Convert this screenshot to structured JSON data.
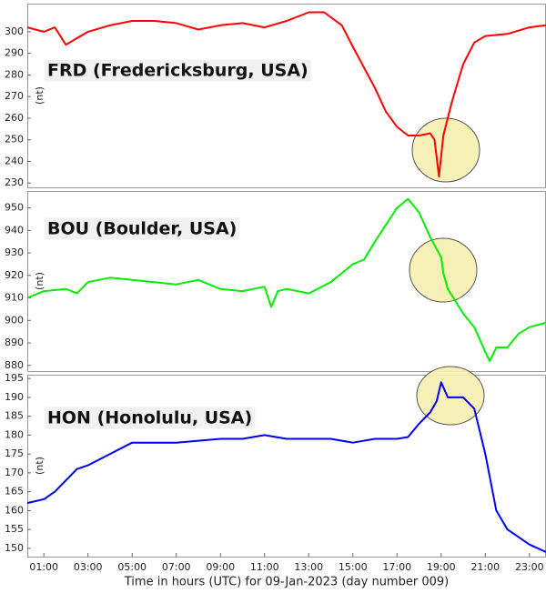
{
  "chart_data": [
    {
      "type": "line",
      "title": "FRD (Fredericksburg, USA)",
      "ylabel": "(nt)",
      "xlim": [
        0.25,
        23.75
      ],
      "ylim": [
        228,
        313
      ],
      "yticks": [
        230,
        240,
        250,
        260,
        270,
        280,
        290,
        300
      ],
      "x": [
        0.25,
        1,
        1.5,
        2,
        2.5,
        3,
        4,
        5,
        6,
        7,
        8,
        9,
        10,
        11,
        12,
        13,
        13.7,
        14.5,
        15,
        16,
        16.5,
        17,
        17.5,
        18,
        18.5,
        18.7,
        18.9,
        19.1,
        19.5,
        20,
        20.5,
        21,
        22,
        23,
        23.75
      ],
      "series": [
        {
          "name": "FRD",
          "color": "#ff0000",
          "values": [
            302,
            300,
            302,
            294,
            297,
            300,
            303,
            305,
            305,
            304,
            301,
            303,
            304,
            302,
            305,
            309,
            309,
            303,
            293,
            274,
            263,
            256,
            252,
            252,
            253,
            250,
            233,
            252,
            268,
            285,
            295,
            298,
            299,
            302,
            303
          ]
        }
      ]
    },
    {
      "type": "line",
      "title": "BOU (Boulder, USA)",
      "ylabel": "(nt)",
      "xlim": [
        0.25,
        23.75
      ],
      "ylim": [
        877.5,
        957.5
      ],
      "yticks": [
        880,
        890,
        900,
        910,
        920,
        930,
        940,
        950
      ],
      "x": [
        0.25,
        1,
        2,
        2.5,
        3,
        4,
        5,
        6,
        7,
        8,
        9,
        10,
        11,
        11.3,
        11.6,
        12,
        13,
        14,
        15,
        15.5,
        16,
        17,
        17.5,
        18,
        18.5,
        19,
        19.1,
        19.3,
        20,
        20.5,
        21,
        21.2,
        21.5,
        22,
        22.5,
        23,
        23.75
      ],
      "series": [
        {
          "name": "BOU",
          "color": "#00ee00",
          "values": [
            910,
            913,
            914,
            912,
            917,
            919,
            918,
            917,
            916,
            918,
            914,
            913,
            915,
            906,
            913,
            914,
            912,
            917,
            925,
            927,
            935,
            950,
            954,
            948,
            937,
            928,
            921,
            914,
            903,
            897,
            886,
            882,
            888,
            888,
            894,
            897,
            899
          ]
        }
      ]
    },
    {
      "type": "line",
      "title": "HON (Honolulu, USA)",
      "ylabel": "(nt)",
      "xlabel": "Time in hours (UTC) for 09-Jan-2023 (day number 009)",
      "xlim": [
        0.25,
        23.75
      ],
      "ylim": [
        147.8,
        196
      ],
      "yticks": [
        150,
        155,
        160,
        165,
        170,
        175,
        180,
        185,
        190,
        195
      ],
      "xticks": [
        {
          "value": 1,
          "label": "01:00"
        },
        {
          "value": 3,
          "label": "03:00"
        },
        {
          "value": 5,
          "label": "05:00"
        },
        {
          "value": 7,
          "label": "07:00"
        },
        {
          "value": 9,
          "label": "09:00"
        },
        {
          "value": 11,
          "label": "11:00"
        },
        {
          "value": 13,
          "label": "13:00"
        },
        {
          "value": 15,
          "label": "15:00"
        },
        {
          "value": 17,
          "label": "17:00"
        },
        {
          "value": 19,
          "label": "19:00"
        },
        {
          "value": 21,
          "label": "21:00"
        },
        {
          "value": 23,
          "label": "23:00"
        }
      ],
      "x": [
        0.25,
        1,
        1.5,
        2,
        2.5,
        3,
        4,
        5,
        6,
        7,
        8,
        9,
        10,
        11,
        12,
        13,
        14,
        15,
        16,
        17,
        17.5,
        18,
        18.5,
        18.8,
        19,
        19.3,
        20,
        20.5,
        21,
        21.5,
        22,
        23,
        23.75
      ],
      "series": [
        {
          "name": "HON",
          "color": "#0000ee",
          "values": [
            162,
            163,
            165,
            168,
            171,
            172,
            175,
            178,
            178,
            178,
            178.5,
            179,
            179,
            180,
            179,
            179,
            179,
            178,
            179,
            179,
            179.5,
            183,
            186,
            189,
            194,
            190,
            190,
            187,
            175,
            160,
            155,
            151,
            149
          ]
        }
      ]
    }
  ]
}
